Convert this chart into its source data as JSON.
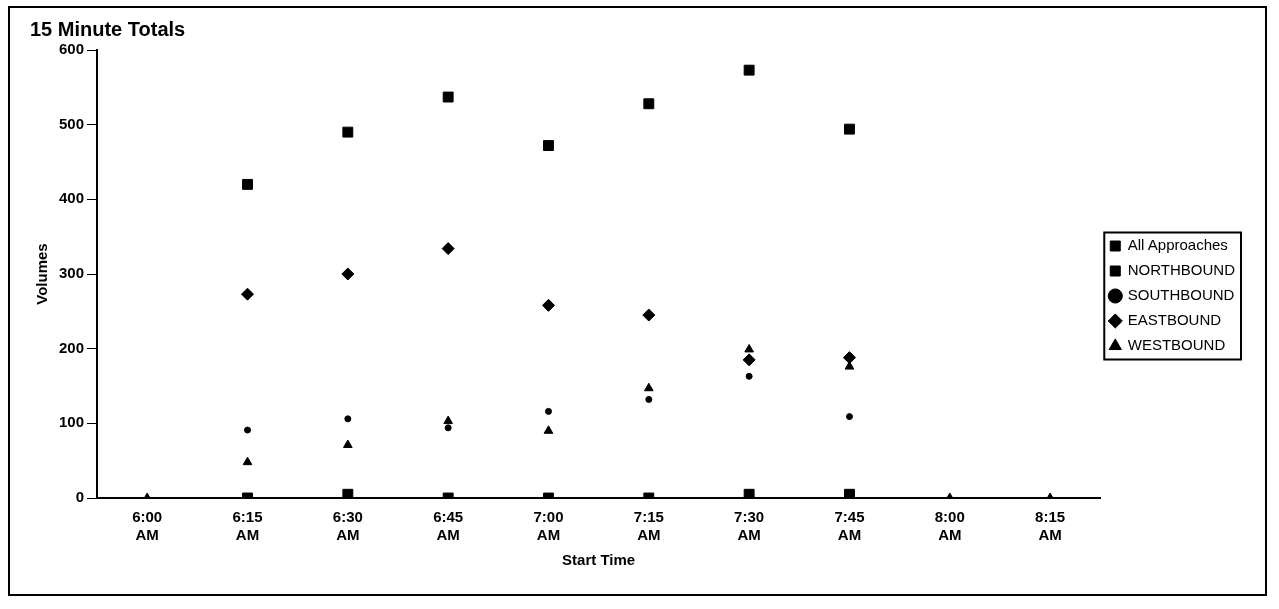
{
  "chart_data": {
    "type": "scatter",
    "title": "15 Minute Totals",
    "xlabel": "Start Time",
    "ylabel": "Volumes",
    "categories": [
      "6:00 AM",
      "6:15 AM",
      "6:30 AM",
      "6:45 AM",
      "7:00 AM",
      "7:15 AM",
      "7:30 AM",
      "7:45 AM",
      "8:00 AM",
      "8:15 AM"
    ],
    "ylim": [
      0,
      600
    ],
    "yticks": [
      0,
      100,
      200,
      300,
      400,
      500,
      600
    ],
    "grid": false,
    "legend": "right",
    "series": [
      {
        "name": "All Approaches",
        "color": "#000000",
        "marker": "square",
        "values": [
          null,
          420,
          490,
          537,
          472,
          528,
          573,
          494,
          null,
          null
        ]
      },
      {
        "name": "NORTHBOUND",
        "color": "#000000",
        "marker": "square",
        "values": [
          null,
          0,
          5,
          0,
          0,
          0,
          5,
          5,
          null,
          null
        ]
      },
      {
        "name": "SOUTHBOUND",
        "color": "#000000",
        "marker": "circle",
        "values": [
          null,
          91,
          106,
          94,
          116,
          132,
          163,
          109,
          null,
          null
        ]
      },
      {
        "name": "EASTBOUND",
        "color": "#000000",
        "marker": "diamond",
        "values": [
          null,
          273,
          300,
          334,
          258,
          245,
          185,
          188,
          null,
          null
        ]
      },
      {
        "name": "WESTBOUND",
        "color": "#000000",
        "marker": "triangle",
        "values": [
          0,
          48,
          71,
          103,
          90,
          147,
          199,
          176,
          0,
          0
        ]
      }
    ]
  }
}
